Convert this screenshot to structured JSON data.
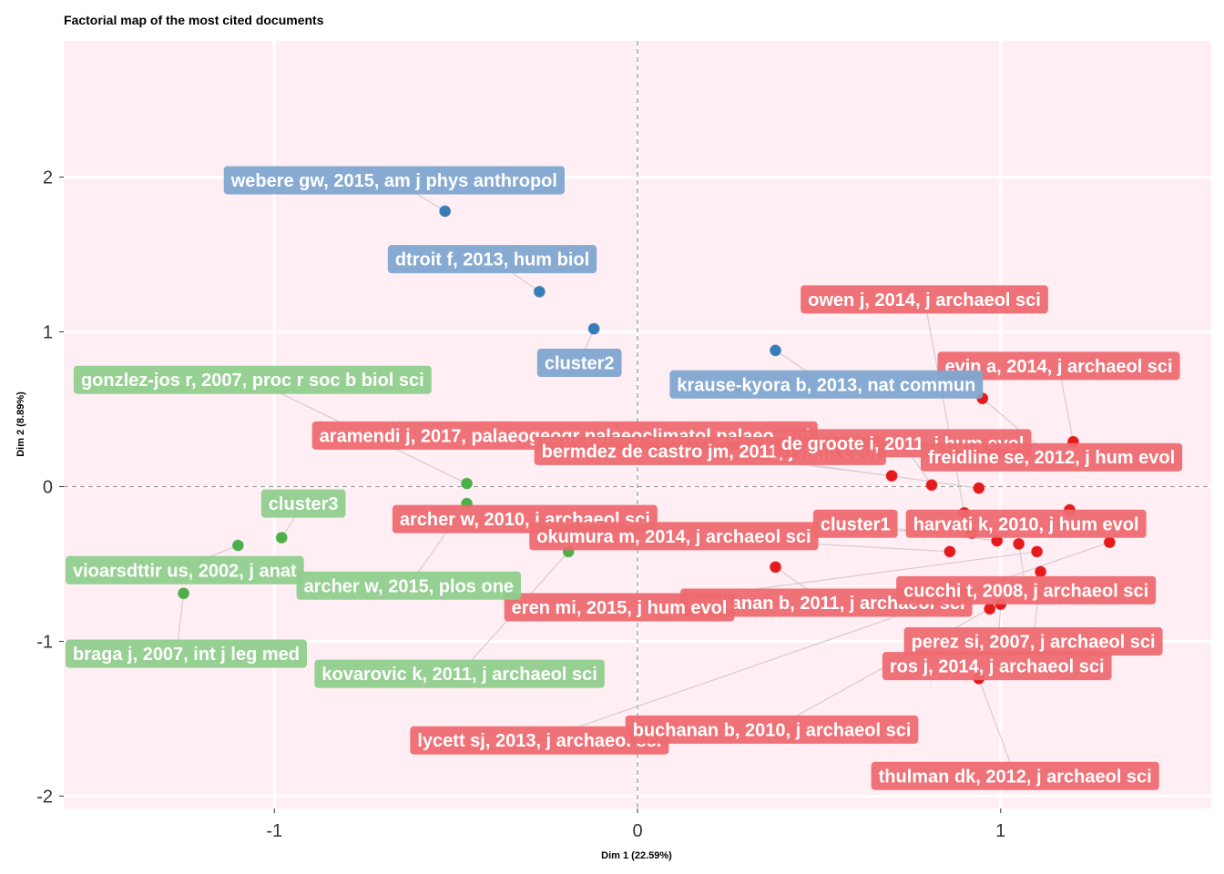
{
  "chart_data": {
    "type": "scatter",
    "title": "Factorial map of the most cited documents",
    "xlabel": "Dim 1 (22.59%)",
    "ylabel": "Dim 2 (8.89%)",
    "xlim": [
      -1.58,
      1.58
    ],
    "ylim": [
      -2.08,
      2.88
    ],
    "xticks": [
      -1,
      0,
      1
    ],
    "yticks": [
      -2,
      -1,
      0,
      1,
      2
    ],
    "xtick_labels": [
      "-1",
      "0",
      "1"
    ],
    "ytick_labels": [
      "-2",
      "-1",
      "0",
      "1",
      "2"
    ],
    "grid": true,
    "reference_lines": {
      "x": 0,
      "y": 0
    },
    "colors": {
      "panel_bg": "#ffeef3",
      "grid": "#ffffff",
      "cluster1": "#e41a1c",
      "cluster1_label": "#ee6a70",
      "cluster2": "#377eb8",
      "cluster2_label": "#7fa6cf",
      "cluster3": "#4daf4a",
      "cluster3_label": "#8fce8c",
      "connector": "#d7cfd3",
      "refline": "#999999"
    },
    "series": [
      {
        "name": "cluster1",
        "color": "#e41a1c",
        "points": [
          {
            "label": "owen j, 2014, j archaeol sci",
            "x": 0.9,
            "y": -0.17,
            "lx": 0.79,
            "ly": 1.21
          },
          {
            "label": "evin a, 2014, j archaeol sci",
            "x": 1.2,
            "y": 0.29,
            "lx": 1.16,
            "ly": 0.78
          },
          {
            "label": "aramendi j, 2017, palaeogeogr palaeoclimatol palaeoecol",
            "x": 0.7,
            "y": 0.07,
            "lx": -0.2,
            "ly": 0.33
          },
          {
            "label": "bermdez de castro jm, 2011, j hum evol",
            "x": 0.94,
            "y": -0.01,
            "lx": 0.2,
            "ly": 0.23
          },
          {
            "label": "de groote i, 2011, j hum evol",
            "x": 0.81,
            "y": 0.01,
            "lx": 0.73,
            "ly": 0.28
          },
          {
            "label": "freidline se, 2012, j hum evol",
            "x": 0.95,
            "y": 0.57,
            "lx": 1.14,
            "ly": 0.19
          },
          {
            "label": "harvati k, 2010, j hum evol",
            "x": 1.19,
            "y": -0.15,
            "lx": 1.07,
            "ly": -0.24
          },
          {
            "label": "archer w, 2010, j archaeol sci",
            "x": 0.92,
            "y": -0.3,
            "lx": -0.31,
            "ly": -0.21
          },
          {
            "label": "okumura m, 2014, j archaeol sci",
            "x": 0.86,
            "y": -0.42,
            "lx": 0.1,
            "ly": -0.32
          },
          {
            "label": "cluster1",
            "x": 0.99,
            "y": -0.35,
            "lx": 0.6,
            "ly": -0.24
          },
          {
            "label": "buchanan b, 2011, j archaeol sci",
            "x": 0.38,
            "y": -0.52,
            "lx": 0.52,
            "ly": -0.75
          },
          {
            "label": "cucchi t, 2008, j archaeol sci",
            "x": 1.05,
            "y": -0.37,
            "lx": 1.07,
            "ly": -0.67
          },
          {
            "label": "eren mi, 2015, j hum evol",
            "x": 1.1,
            "y": -0.42,
            "lx": -0.05,
            "ly": -0.78
          },
          {
            "label": "perez si, 2007, j archaeol sci",
            "x": 1.11,
            "y": -0.55,
            "lx": 1.09,
            "ly": -1.0
          },
          {
            "label": "ros j, 2014, j archaeol sci",
            "x": 1.0,
            "y": -0.76,
            "lx": 0.99,
            "ly": -1.16
          },
          {
            "label": "lycett sj, 2013, j archaeol sci",
            "x": 1.3,
            "y": -0.36,
            "lx": -0.27,
            "ly": -1.64
          },
          {
            "label": "buchanan b, 2010, j archaeol sci",
            "x": 0.97,
            "y": -0.79,
            "lx": 0.37,
            "ly": -1.57
          },
          {
            "label": "thulman dk, 2012, j archaeol sci",
            "x": 0.94,
            "y": -1.24,
            "lx": 1.04,
            "ly": -1.87
          }
        ]
      },
      {
        "name": "cluster2",
        "color": "#377eb8",
        "points": [
          {
            "label": "webere gw, 2015, am j phys anthropol",
            "x": -0.53,
            "y": 1.78,
            "lx": -0.67,
            "ly": 1.98
          },
          {
            "label": "dtroit f, 2013, hum biol",
            "x": -0.27,
            "y": 1.26,
            "lx": -0.4,
            "ly": 1.47
          },
          {
            "label": "cluster2",
            "x": -0.12,
            "y": 1.02,
            "lx": -0.16,
            "ly": 0.8
          },
          {
            "label": "krause-kyora b, 2013, nat commun",
            "x": 0.38,
            "y": 0.88,
            "lx": 0.52,
            "ly": 0.66
          }
        ]
      },
      {
        "name": "cluster3",
        "color": "#4daf4a",
        "points": [
          {
            "label": "gonzlez-jos r, 2007, proc r soc b biol sci",
            "x": -0.47,
            "y": 0.02,
            "lx": -1.06,
            "ly": 0.69
          },
          {
            "label": "cluster3",
            "x": -0.98,
            "y": -0.33,
            "lx": -0.92,
            "ly": -0.11
          },
          {
            "label": "vioarsdttir us, 2002, j anat",
            "x": -1.1,
            "y": -0.38,
            "lx": -1.27,
            "ly": -0.54
          },
          {
            "label": "archer w, 2015, plos one",
            "x": -0.47,
            "y": -0.11,
            "lx": -0.63,
            "ly": -0.64
          },
          {
            "label": "braga j, 2007, int j leg med",
            "x": -1.25,
            "y": -0.69,
            "lx": -1.27,
            "ly": -1.08
          },
          {
            "label": "kovarovic k, 2011, j archaeol sci",
            "x": -0.19,
            "y": -0.42,
            "lx": -0.49,
            "ly": -1.21
          }
        ]
      }
    ]
  }
}
